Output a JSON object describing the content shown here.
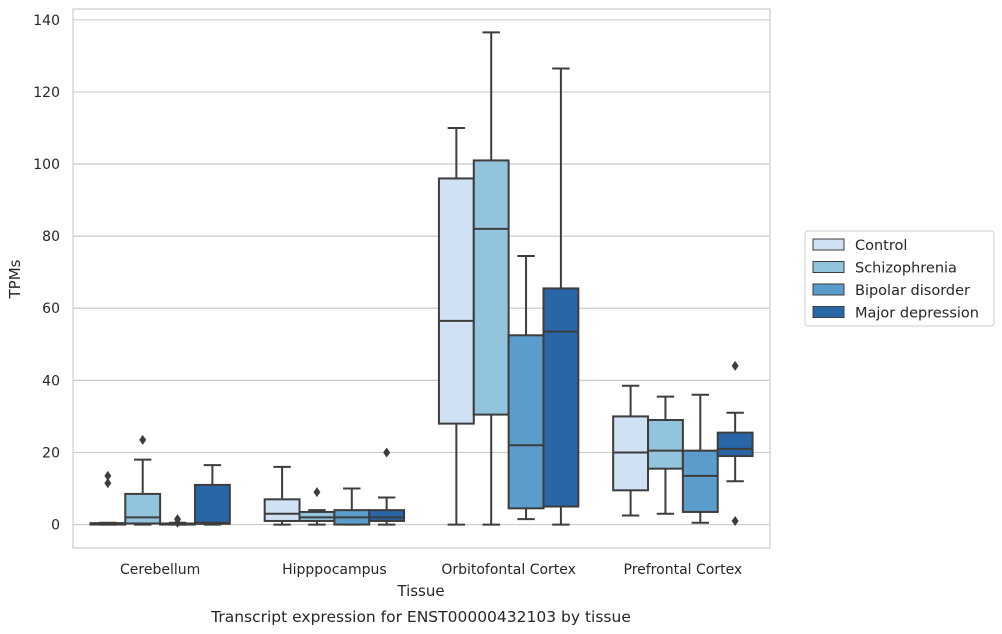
{
  "chart_data": {
    "type": "box",
    "caption": "Transcript expression for ENST00000432103 by tissue",
    "xlabel": "Tissue",
    "ylabel": "TPMs",
    "ylim": [
      -6.5,
      143
    ],
    "yticks": [
      0,
      20,
      40,
      60,
      80,
      100,
      120,
      140
    ],
    "grid": true,
    "legend_position": "right",
    "categories": [
      "Cerebellum",
      "Hipppocampus",
      "Orbitofontal Cortex",
      "Prefrontal Cortex"
    ],
    "series": [
      {
        "name": "Control",
        "color": "#cfe1f2",
        "boxes": [
          {
            "q1": 0,
            "median": 0.2,
            "q3": 0.4,
            "whisker_low": 0,
            "whisker_high": 0.5,
            "outliers": [
              11.5,
              13.5
            ]
          },
          {
            "q1": 1,
            "median": 3,
            "q3": 7,
            "whisker_low": 0,
            "whisker_high": 16,
            "outliers": []
          },
          {
            "q1": 28,
            "median": 56.5,
            "q3": 96,
            "whisker_low": 0,
            "whisker_high": 110,
            "outliers": []
          },
          {
            "q1": 9.5,
            "median": 20,
            "q3": 30,
            "whisker_low": 2.5,
            "whisker_high": 38.5,
            "outliers": []
          }
        ]
      },
      {
        "name": "Schizophrenia",
        "color": "#93c4de",
        "boxes": [
          {
            "q1": 0.3,
            "median": 2,
            "q3": 8.5,
            "whisker_low": 0,
            "whisker_high": 18,
            "outliers": [
              23.5
            ]
          },
          {
            "q1": 1,
            "median": 2,
            "q3": 3.5,
            "whisker_low": 0,
            "whisker_high": 4,
            "outliers": [
              9
            ]
          },
          {
            "q1": 30.5,
            "median": 82,
            "q3": 101,
            "whisker_low": 0,
            "whisker_high": 136.5,
            "outliers": []
          },
          {
            "q1": 15.5,
            "median": 20.5,
            "q3": 29,
            "whisker_low": 3,
            "whisker_high": 35.5,
            "outliers": []
          }
        ]
      },
      {
        "name": "Bipolar disorder",
        "color": "#5a9ccb",
        "boxes": [
          {
            "q1": 0,
            "median": 0.1,
            "q3": 0.3,
            "whisker_low": 0,
            "whisker_high": 0.5,
            "outliers": [
              0.5,
              1.5
            ]
          },
          {
            "q1": 0,
            "median": 2,
            "q3": 4,
            "whisker_low": 0,
            "whisker_high": 10,
            "outliers": []
          },
          {
            "q1": 4.5,
            "median": 22,
            "q3": 52.5,
            "whisker_low": 1.5,
            "whisker_high": 74.5,
            "outliers": []
          },
          {
            "q1": 3.5,
            "median": 13.5,
            "q3": 20.5,
            "whisker_low": 0.5,
            "whisker_high": 36,
            "outliers": []
          }
        ]
      },
      {
        "name": "Major depression",
        "color": "#2866a8",
        "boxes": [
          {
            "q1": 0.2,
            "median": 0.5,
            "q3": 11,
            "whisker_low": 0,
            "whisker_high": 16.5,
            "outliers": []
          },
          {
            "q1": 1,
            "median": 2,
            "q3": 4,
            "whisker_low": 0,
            "whisker_high": 7.5,
            "outliers": [
              20
            ]
          },
          {
            "q1": 5,
            "median": 53.5,
            "q3": 65.5,
            "whisker_low": 0,
            "whisker_high": 126.5,
            "outliers": []
          },
          {
            "q1": 19,
            "median": 21,
            "q3": 25.5,
            "whisker_low": 12,
            "whisker_high": 31,
            "outliers": [
              1,
              44
            ]
          }
        ]
      }
    ]
  }
}
